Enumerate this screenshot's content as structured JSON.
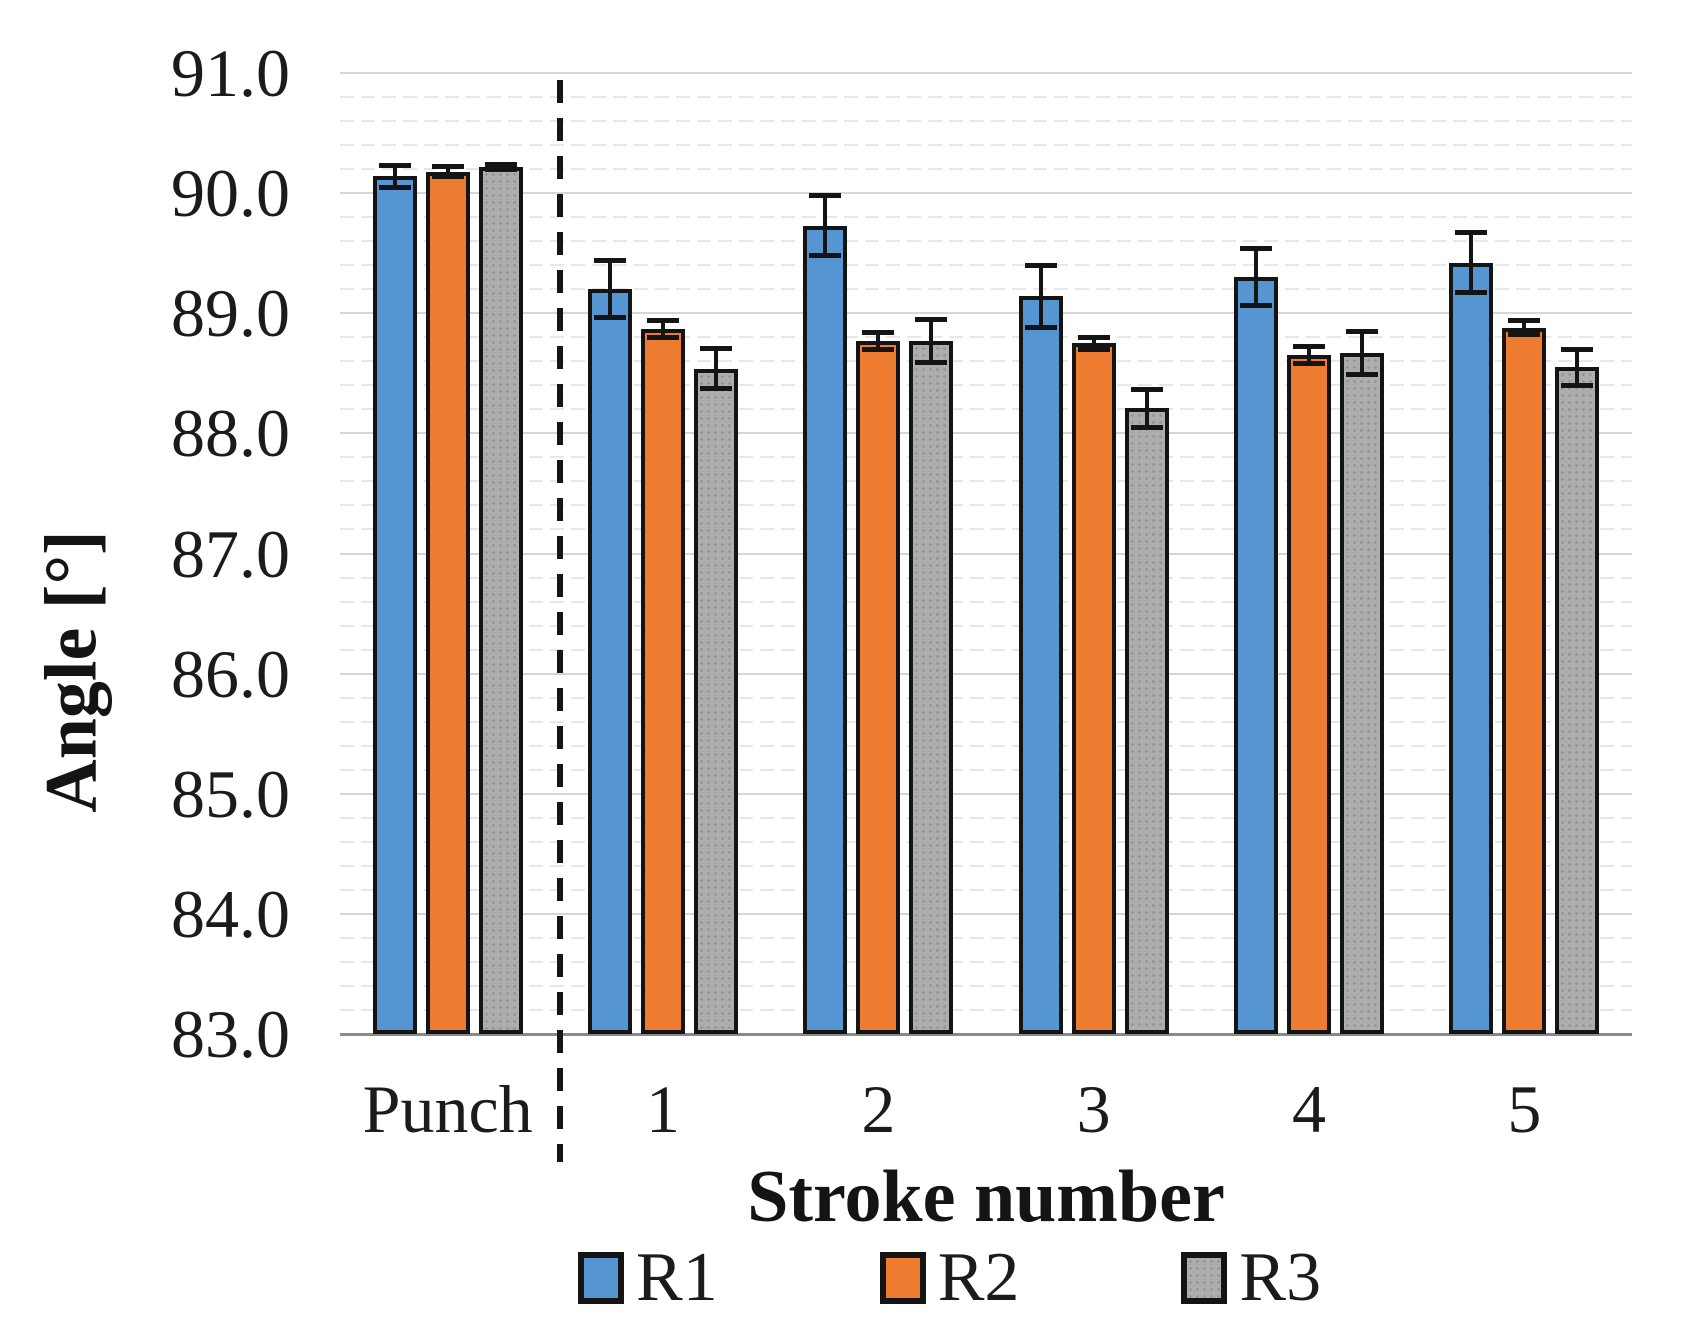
{
  "chart_data": {
    "type": "bar",
    "title": "",
    "xlabel": "Stroke number",
    "ylabel": "Angle [°]",
    "categories": [
      "Punch",
      "1",
      "2",
      "3",
      "4",
      "5"
    ],
    "series": [
      {
        "name": "R1",
        "color": "#5596D2",
        "pattern": "solid",
        "values": [
          90.14,
          89.2,
          89.73,
          89.14,
          89.3,
          89.42
        ],
        "errors": [
          0.11,
          0.26,
          0.27,
          0.28,
          0.26,
          0.27
        ]
      },
      {
        "name": "R2",
        "color": "#ED7C30",
        "pattern": "solid",
        "values": [
          90.18,
          88.87,
          88.77,
          88.75,
          88.65,
          88.88
        ],
        "errors": [
          0.06,
          0.09,
          0.09,
          0.07,
          0.09,
          0.08
        ]
      },
      {
        "name": "R3",
        "color": "#ADADAD",
        "pattern": "dots",
        "values": [
          90.22,
          88.54,
          88.77,
          88.21,
          88.67,
          88.55
        ],
        "errors": [
          0.04,
          0.19,
          0.2,
          0.18,
          0.2,
          0.17
        ]
      }
    ],
    "ylim": [
      83.0,
      91.0
    ],
    "ytick_step": 1.0,
    "minor_grid_step": 0.2,
    "yticks": [
      "91.0",
      "90.0",
      "89.0",
      "88.0",
      "87.0",
      "86.0",
      "85.0",
      "84.0",
      "83.0"
    ],
    "grid": "on",
    "error_bars": true,
    "legend_position": "bottom",
    "bar_border_color": "#141414",
    "separator": {
      "style": "dashed",
      "color": "#161616",
      "between": [
        "Punch",
        "1"
      ]
    }
  }
}
